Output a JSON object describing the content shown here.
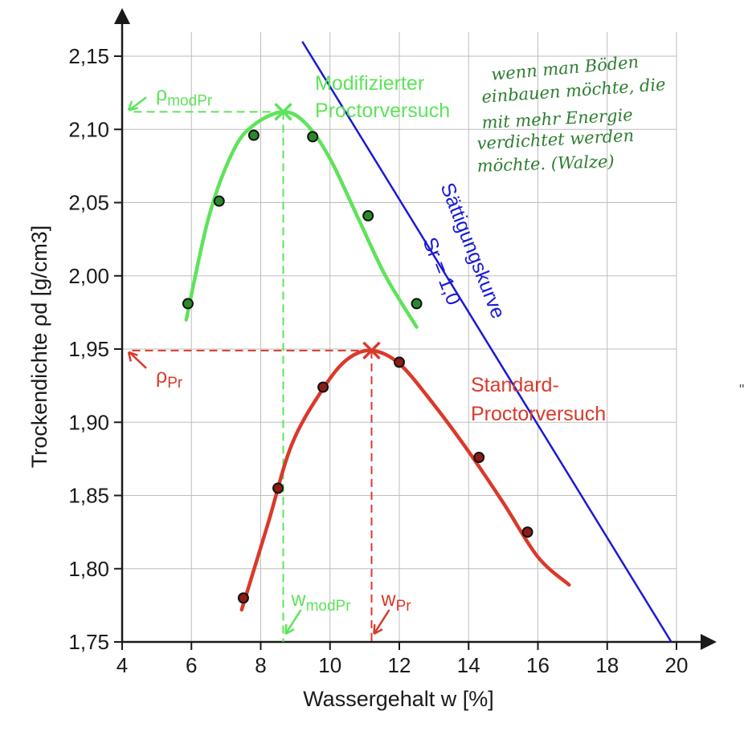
{
  "chart_data": {
    "type": "line",
    "xlabel": "Wassergehalt w [%]",
    "ylabel": "Trockendichte ρd [g/cm3]",
    "xlim": [
      4,
      20
    ],
    "ylim": [
      1.75,
      2.17
    ],
    "x_ticks": [
      "4",
      "6",
      "8",
      "10",
      "12",
      "14",
      "16",
      "18",
      "20"
    ],
    "y_ticks": [
      "1,75",
      "1,80",
      "1,85",
      "1,90",
      "1,95",
      "2,00",
      "2,05",
      "2,10",
      "2,15"
    ],
    "grid": true,
    "series": [
      {
        "name": "Modifizierter Proctorversuch",
        "color": "#5ee35a",
        "points": [
          {
            "x": 5.9,
            "y": 1.981
          },
          {
            "x": 6.8,
            "y": 2.051
          },
          {
            "x": 7.8,
            "y": 2.096
          },
          {
            "x": 9.5,
            "y": 2.095
          },
          {
            "x": 11.1,
            "y": 2.041
          },
          {
            "x": 12.5,
            "y": 1.981
          }
        ],
        "curve": [
          [
            5.85,
            1.97
          ],
          [
            6.5,
            2.04
          ],
          [
            7.2,
            2.085
          ],
          [
            7.8,
            2.103
          ],
          [
            8.65,
            2.112
          ],
          [
            9.3,
            2.104
          ],
          [
            10.0,
            2.08
          ],
          [
            10.8,
            2.04
          ],
          [
            11.6,
            2.0
          ],
          [
            12.5,
            1.965
          ]
        ],
        "optimum": {
          "x": 8.65,
          "y": 2.112
        },
        "optimum_labels": {
          "rho": "ρ",
          "rho_sub": "modPr",
          "w": "w",
          "w_sub": "modPr"
        }
      },
      {
        "name": "Standard-Proctorversuch",
        "color": "#d93a2b",
        "points": [
          {
            "x": 7.5,
            "y": 1.78
          },
          {
            "x": 8.5,
            "y": 1.855
          },
          {
            "x": 9.8,
            "y": 1.924
          },
          {
            "x": 12.0,
            "y": 1.941
          },
          {
            "x": 14.3,
            "y": 1.876
          },
          {
            "x": 15.7,
            "y": 1.825
          }
        ],
        "curve": [
          [
            7.45,
            1.772
          ],
          [
            8.2,
            1.83
          ],
          [
            8.9,
            1.885
          ],
          [
            9.8,
            1.923
          ],
          [
            10.5,
            1.943
          ],
          [
            11.2,
            1.949
          ],
          [
            12.0,
            1.94
          ],
          [
            13.0,
            1.912
          ],
          [
            14.0,
            1.88
          ],
          [
            15.0,
            1.845
          ],
          [
            16.0,
            1.808
          ],
          [
            16.9,
            1.789
          ]
        ],
        "optimum": {
          "x": 11.2,
          "y": 1.949
        },
        "optimum_labels": {
          "rho": "ρ",
          "rho_sub": "Pr",
          "w": "w",
          "w_sub": "Pr"
        }
      }
    ],
    "saturation_line": {
      "name_line1": "Sättigungskurve",
      "name_line2": "Sr = 1,0",
      "color": "#1a1ad6",
      "points": [
        [
          9.2,
          2.16
        ],
        [
          19.85,
          1.75
        ]
      ]
    },
    "annotations": {
      "mod_label_line1": "Modifizierter",
      "mod_label_line2": "Proctorversuch",
      "std_label_line1": "Standard-",
      "std_label_line2": "Proctorversuch"
    }
  },
  "handwritten_note": {
    "lines": [
      "wenn man Böden",
      "einbauen möchte, die",
      "mit mehr Energie",
      "verdichtet werden",
      "möchte. (Walze)"
    ],
    "color": "#2e7d32"
  },
  "colors": {
    "mod": "#5ee35a",
    "std": "#d93a2b",
    "saturation": "#1a1ad6",
    "grid": "#bdbdbd",
    "axis": "#1a1a1a"
  }
}
